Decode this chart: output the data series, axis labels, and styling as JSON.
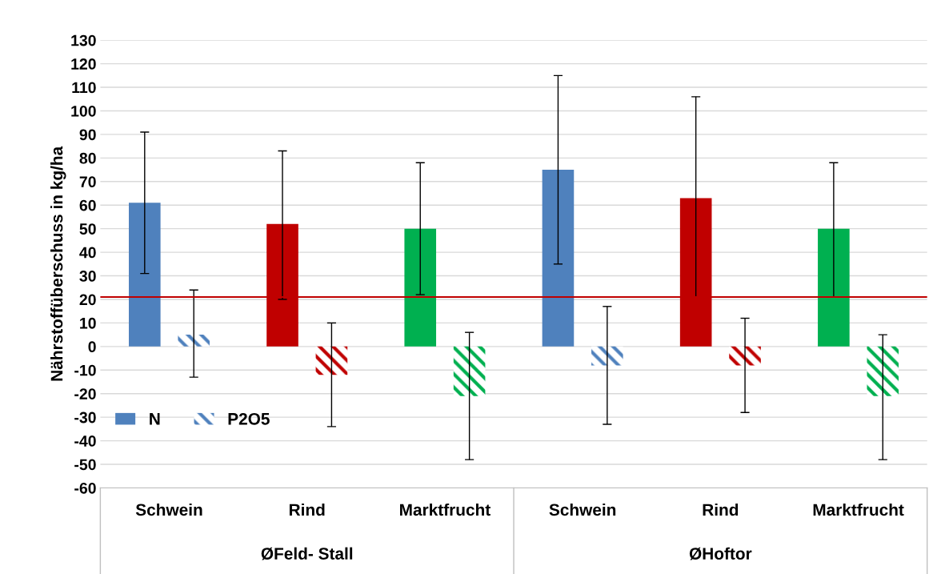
{
  "chart_data": {
    "type": "bar",
    "ylabel": "Nährstoffüberschuss in kg/ha",
    "categories": [
      "Schwein",
      "Rind",
      "Marktfrucht",
      "Schwein",
      "Rind",
      "Marktfrucht"
    ],
    "annotations": [
      "ØFeld- Stall",
      "ØHoftor"
    ],
    "series": [
      {
        "name": "N",
        "color": "#4f81bd",
        "colors": [
          "#4f81bd",
          "#c00000",
          "#00b050",
          "#4f81bd",
          "#c00000",
          "#00b050"
        ],
        "values": [
          61,
          52,
          50,
          75,
          63,
          50
        ],
        "errors": [
          [
            31,
            91
          ],
          [
            20,
            83
          ],
          [
            22,
            78
          ],
          [
            35,
            115
          ],
          [
            21,
            106
          ],
          [
            21,
            78
          ]
        ]
      },
      {
        "name": "P2O5",
        "color": "#4f81bd",
        "colors": [
          "#4f81bd",
          "#c00000",
          "#00b050",
          "#4f81bd",
          "#c00000",
          "#00b050"
        ],
        "values": [
          5,
          -12,
          -21,
          -8,
          -8,
          -21
        ],
        "errors": [
          [
            -13,
            24
          ],
          [
            -34,
            10
          ],
          [
            -48,
            6
          ],
          [
            -33,
            17
          ],
          [
            -28,
            12
          ],
          [
            -48,
            5
          ]
        ]
      }
    ],
    "ref_lines": [
      {
        "axis": "y",
        "value": 21,
        "color": "#c00000"
      }
    ],
    "ylim": [
      -60,
      130
    ],
    "yticks": [
      -60,
      -50,
      -40,
      -30,
      -20,
      -10,
      0,
      10,
      20,
      30,
      40,
      50,
      60,
      70,
      80,
      90,
      100,
      110,
      120,
      130
    ],
    "grid": "y",
    "legend": "bottom left"
  }
}
